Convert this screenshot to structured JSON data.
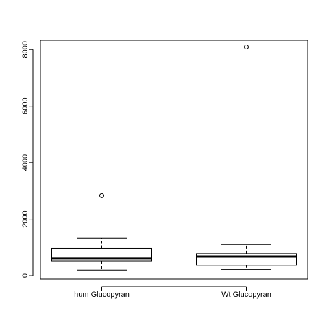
{
  "chart_data": {
    "type": "boxplot",
    "title": "",
    "xlabel": "",
    "ylabel": "",
    "categories": [
      "hum Glucopyran",
      "Wt Glucopyran"
    ],
    "ylim": [
      -120,
      8320
    ],
    "y_ticks": [
      0,
      2000,
      4000,
      6000,
      8000
    ],
    "y_tick_labels": [
      "0",
      "2000",
      "4000",
      "6000",
      "8000"
    ],
    "grid": false,
    "boxes": [
      {
        "name": "hum Glucopyran",
        "whisker_low": 190,
        "q1": 510,
        "median": 610,
        "q3": 960,
        "whisker_high": 1330,
        "outliers": [
          2830
        ]
      },
      {
        "name": "Wt Glucopyran",
        "whisker_low": 210,
        "q1": 370,
        "median": 680,
        "q3": 780,
        "whisker_high": 1100,
        "outliers": [
          8090
        ]
      }
    ]
  }
}
